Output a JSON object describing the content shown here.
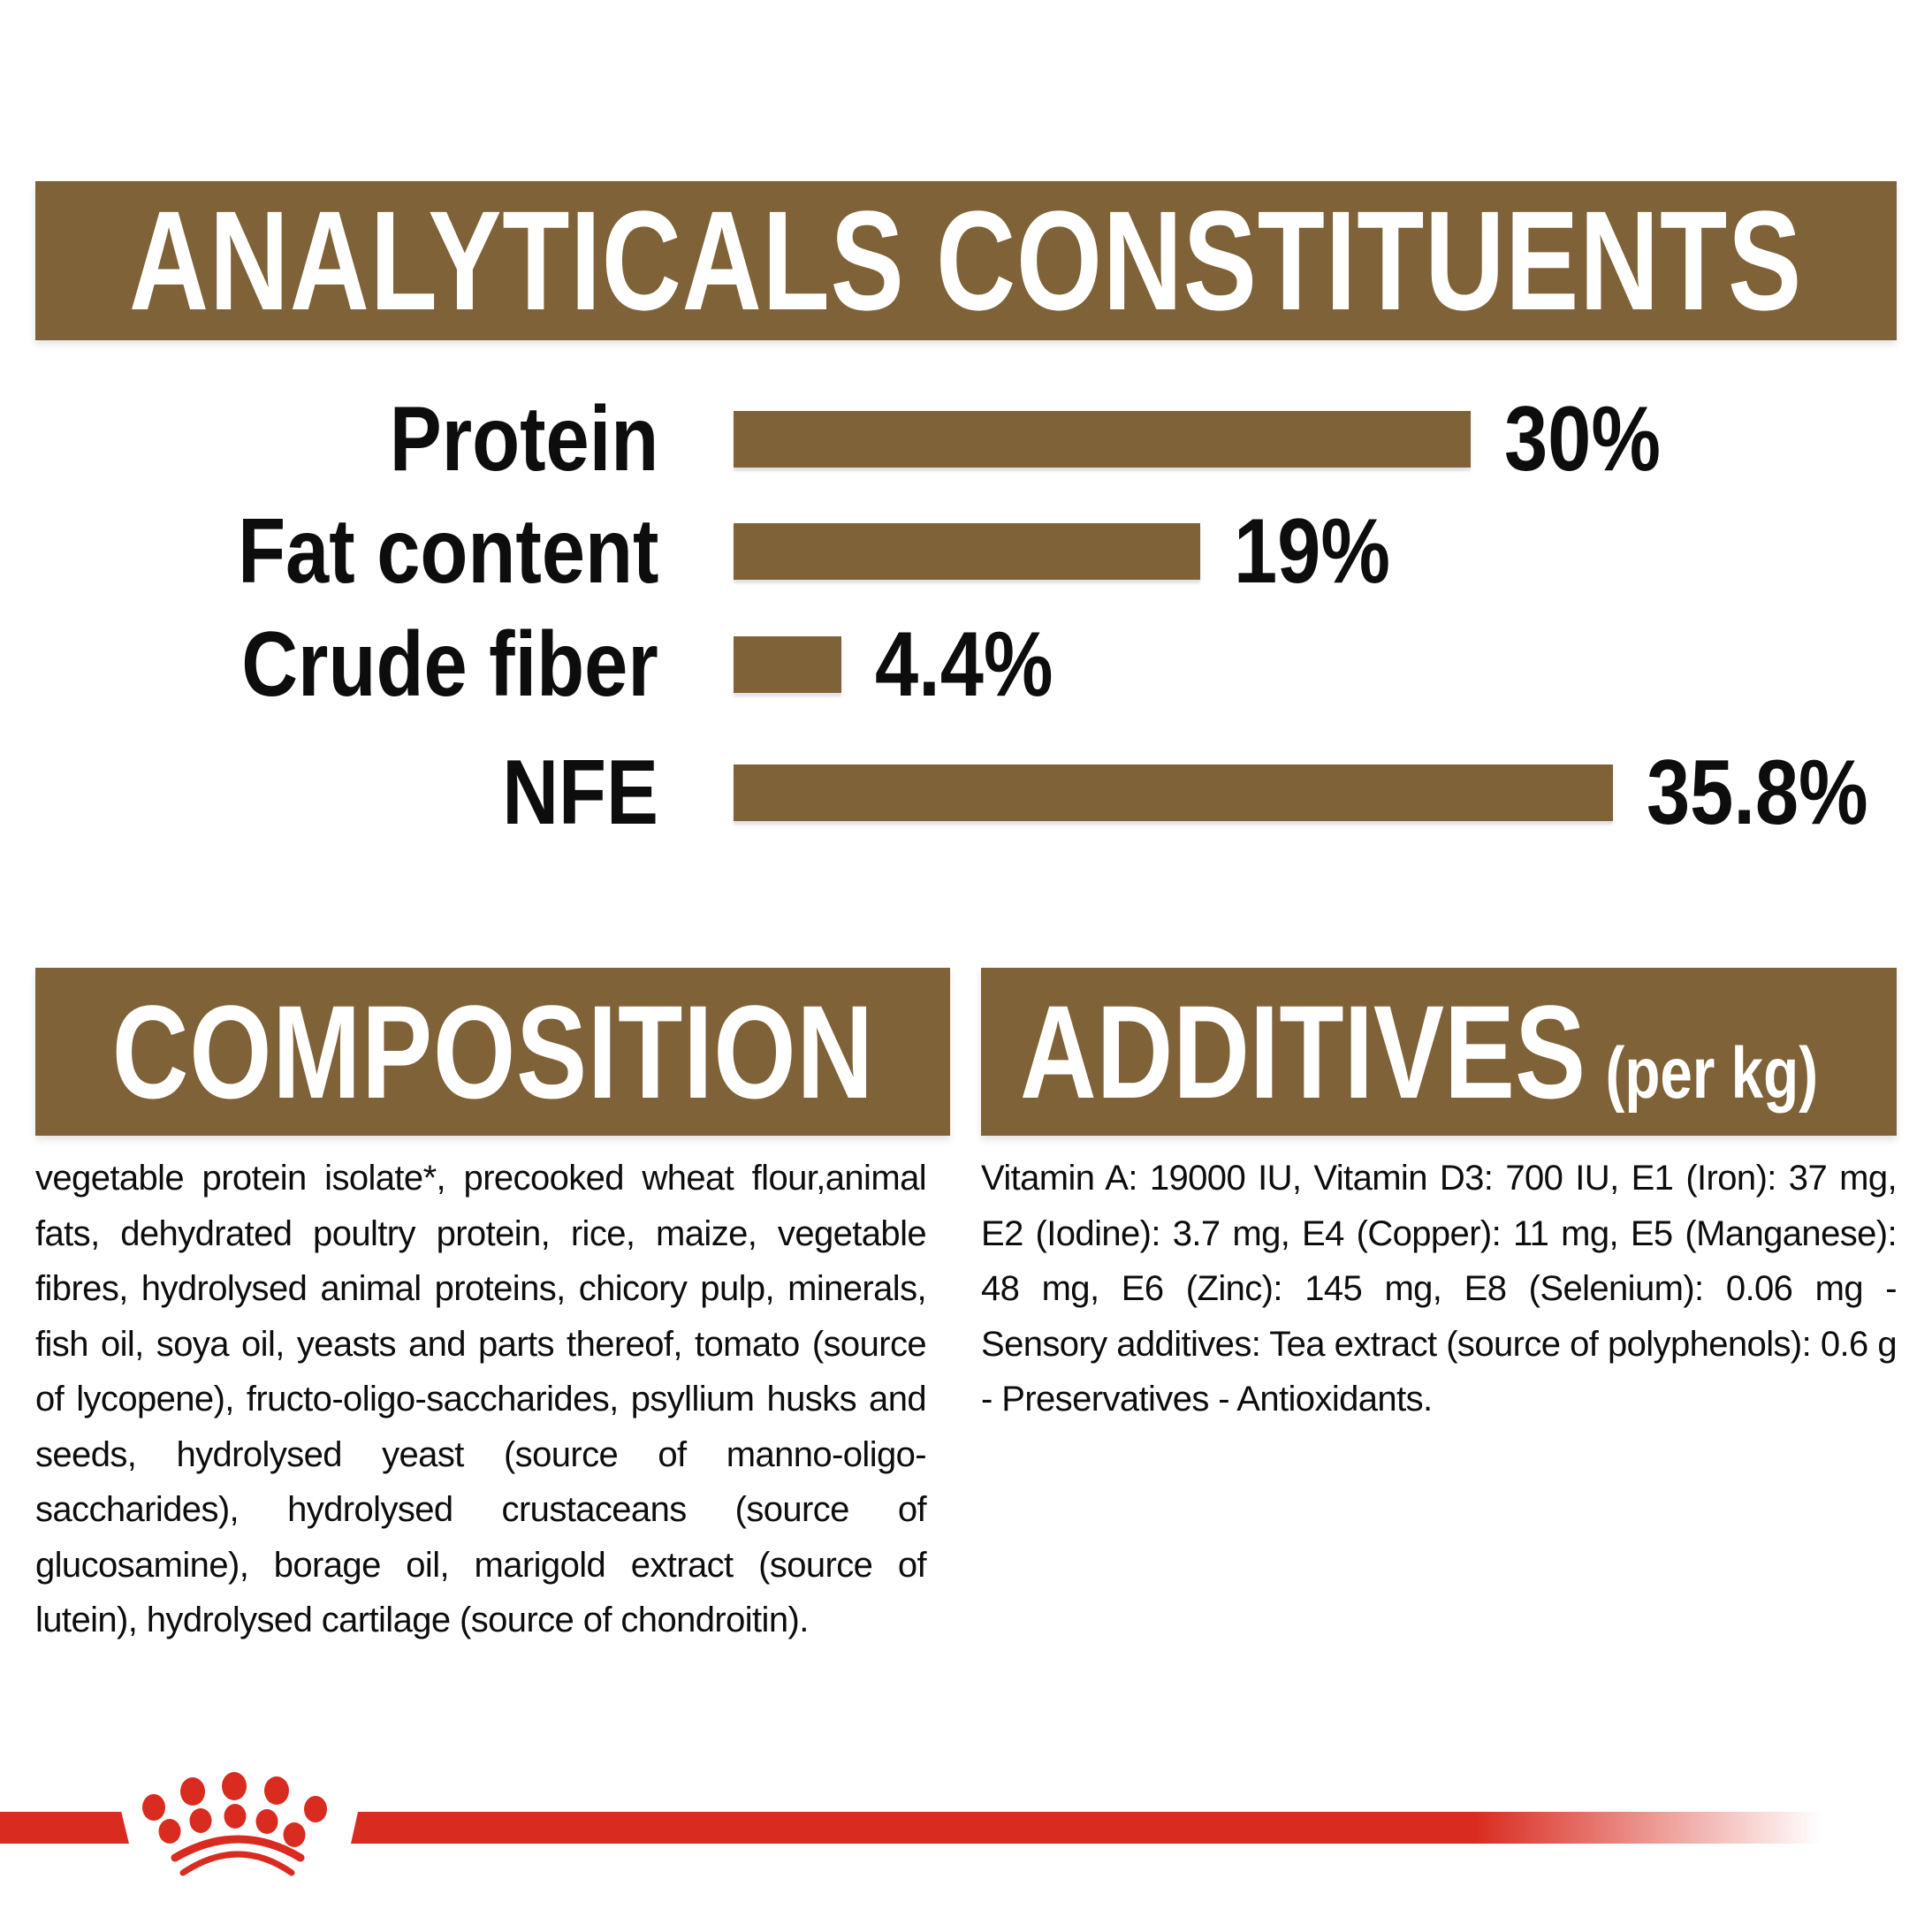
{
  "colors": {
    "brown": "#7F6237",
    "red": "#D92B1F",
    "text": "#0D0D0D",
    "background": "#FFFFFF",
    "banner_text": "#FFFFFF"
  },
  "header": {
    "title": "ANALYTICALS CONSTITUENTS"
  },
  "chart_data": {
    "type": "bar",
    "orientation": "horizontal",
    "title": "ANALYTICALS CONSTITUENTS",
    "categories": [
      "Protein",
      "Fat content",
      "Crude fiber",
      "NFE"
    ],
    "values": [
      30,
      19,
      4.4,
      35.8
    ],
    "value_labels": [
      "30%",
      "19%",
      "4.4%",
      "35.8%"
    ],
    "unit": "%",
    "xlim": [
      0,
      40
    ],
    "grid": false,
    "legend": false,
    "bar_color": "#7F6237",
    "label_color": "#0D0D0D"
  },
  "composition": {
    "title": "COMPOSITION",
    "body": "vegetable protein isolate*, precooked wheat flour,animal fats, dehydrated poultry protein, rice, maize, vegetable fibres, hydrolysed animal proteins, chicory pulp, minerals, fish oil, soya oil, yeasts and parts thereof, tomato (source of lycopene), fructo-oligo-saccharides, psyllium husks and seeds, hydrolysed yeast (source of manno-oligo-saccharides), hydrolysed crustaceans (source of glucosamine), borage oil, marigold extract (source of lutein), hydrolysed cartilage (source of chondroitin)."
  },
  "additives": {
    "title": "ADDITIVES",
    "subtitle": "(per kg)",
    "body": "Vitamin A: 19000 IU, Vitamin D3: 700 IU, E1 (Iron): 37 mg, E2 (Iodine): 3.7 mg, E4 (Copper): 11 mg, E5 (Manganese): 48 mg, E6 (Zinc): 145 mg, E8 (Selenium): 0.06 mg - Sensory additives: Tea extract (source of polyphenols): 0.6 g - Preservatives - Antioxidants.",
    "footnote_marker": "*"
  },
  "footer": {
    "logo": "royal-canin-crown"
  }
}
